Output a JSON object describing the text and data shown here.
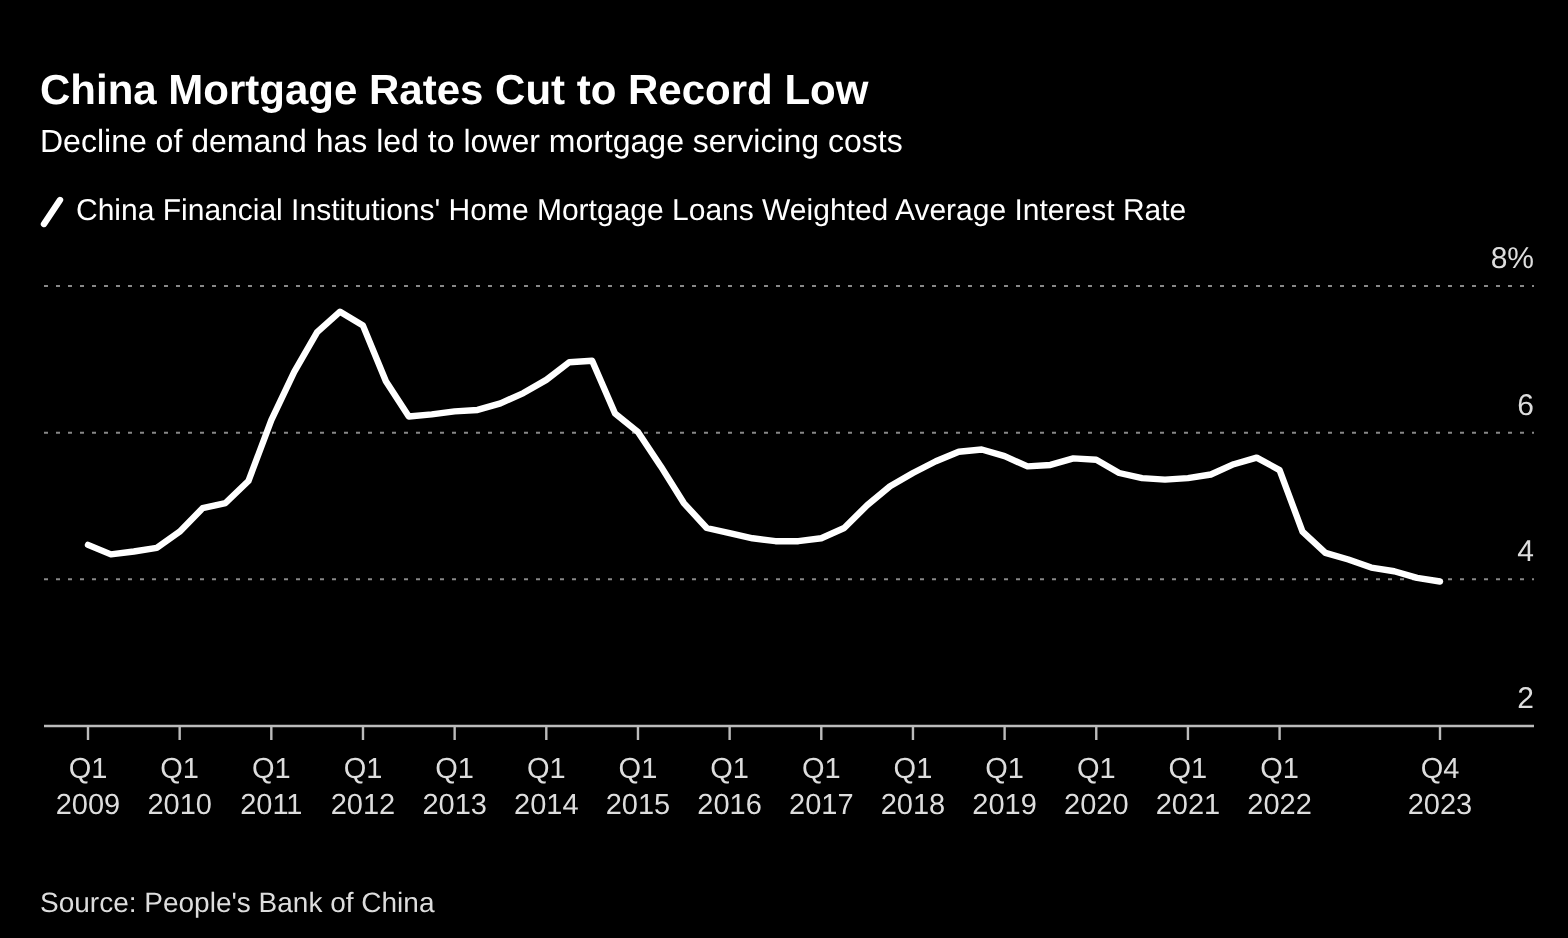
{
  "chart_data": {
    "type": "line",
    "title": "China Mortgage Rates Cut to Record Low",
    "subtitle": "Decline of demand has led to lower mortgage servicing costs",
    "categories": [
      "Q1\n2009",
      null,
      null,
      null,
      "Q1\n2010",
      null,
      null,
      null,
      "Q1\n2011",
      null,
      null,
      null,
      "Q1\n2012",
      null,
      null,
      null,
      "Q1\n2013",
      null,
      null,
      null,
      "Q1\n2014",
      null,
      null,
      null,
      "Q1\n2015",
      null,
      null,
      null,
      "Q1\n2016",
      null,
      null,
      null,
      "Q1\n2017",
      null,
      null,
      null,
      "Q1\n2018",
      null,
      null,
      null,
      "Q1\n2019",
      null,
      null,
      null,
      "Q1\n2020",
      null,
      null,
      null,
      "Q1\n2021",
      null,
      null,
      null,
      "Q1\n2022",
      null,
      null,
      null,
      null,
      null,
      null,
      "Q4\n2023"
    ],
    "series": [
      {
        "name": "China Financial Institutions' Home Mortgage Loans Weighted Average Interest Rate",
        "color": "#ffffff",
        "values": [
          4.47,
          4.34,
          4.38,
          4.43,
          4.65,
          4.97,
          5.04,
          5.34,
          6.17,
          6.83,
          7.37,
          7.65,
          7.46,
          6.7,
          6.22,
          6.25,
          6.29,
          6.31,
          6.4,
          6.54,
          6.72,
          6.96,
          6.98,
          6.26,
          6.01,
          5.54,
          5.04,
          4.7,
          4.63,
          4.56,
          4.52,
          4.52,
          4.56,
          4.7,
          5.01,
          5.27,
          5.45,
          5.61,
          5.74,
          5.77,
          5.68,
          5.54,
          5.56,
          5.65,
          5.63,
          5.45,
          5.38,
          5.36,
          5.38,
          5.43,
          5.57,
          5.66,
          5.49,
          4.65,
          4.36,
          4.27,
          4.16,
          4.11,
          4.02,
          3.97
        ]
      }
    ],
    "ylim": [
      2,
      8
    ],
    "yticks": [
      2,
      4,
      6,
      {
        "value": 8,
        "label": "8%"
      }
    ],
    "grid": "y",
    "legend": "top left",
    "line_style": "solid",
    "annotations": [
      "Source: People's Bank of China"
    ]
  }
}
